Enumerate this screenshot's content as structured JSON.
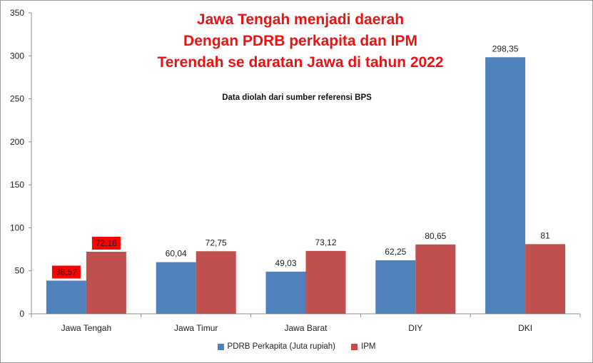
{
  "chart_data": {
    "type": "bar",
    "title_lines": [
      "Jawa Tengah menjadi daerah",
      "Dengan PDRB perkapita dan IPM",
      "Terendah se daratan Jawa di tahun 2022"
    ],
    "subtitle": "Data diolah  dari sumber referensi BPS",
    "categories": [
      "Jawa Tengah",
      "Jawa Timur",
      "Jawa Barat",
      "DIY",
      "DKI"
    ],
    "series": [
      {
        "name": "PDRB Perkapita (Juta rupiah)",
        "color": "#4f81bd",
        "values": [
          38.57,
          60.04,
          49.03,
          62.25,
          298.35
        ],
        "labels": [
          "38,57",
          "60,04",
          "49,03",
          "62,25",
          "298,35"
        ]
      },
      {
        "name": "IPM",
        "color": "#c0504d",
        "values": [
          72.16,
          72.75,
          73.12,
          80.65,
          81
        ],
        "labels": [
          "72,16",
          "72,75",
          "73,12",
          "80,65",
          "81"
        ]
      }
    ],
    "highlighted_category": "Jawa Tengah",
    "highlight_color": "#ff0000",
    "ylim": [
      0,
      350
    ],
    "yticks": [
      "0",
      "50",
      "100",
      "150",
      "200",
      "250",
      "300",
      "350"
    ],
    "grid": false,
    "legend_position": "bottom"
  }
}
